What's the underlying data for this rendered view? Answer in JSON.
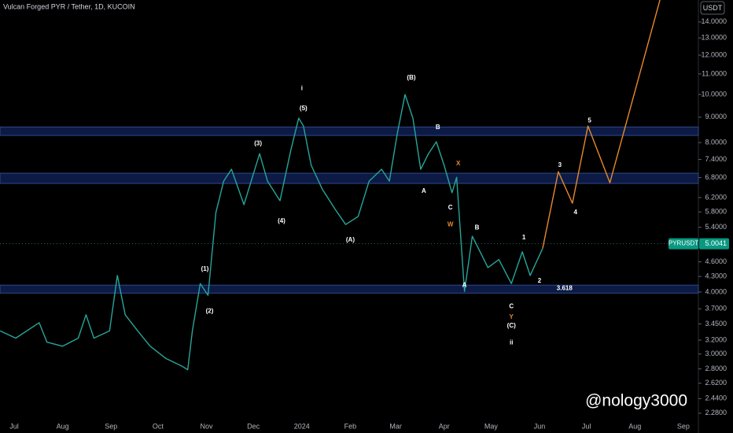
{
  "chart_data": {
    "type": "line",
    "title": "Vulcan Forged PYR / Tether, 1D, KUCOIN",
    "currency": "USDT",
    "symbol": "PYRUSDT",
    "last_price": {
      "value": 5.0041,
      "label": "5.0041"
    },
    "watermark": "@nology3000",
    "log_scale": true,
    "grid": false,
    "xlim": [
      -9.05,
      437.6
    ],
    "ylim": [
      2.08,
      15.5
    ],
    "xticks": [
      {
        "value": 0,
        "label": "Jul"
      },
      {
        "value": 31,
        "label": "Aug"
      },
      {
        "value": 62,
        "label": "Sep"
      },
      {
        "value": 92,
        "label": "Oct"
      },
      {
        "value": 123,
        "label": "Nov"
      },
      {
        "value": 153,
        "label": "Dec"
      },
      {
        "value": 184,
        "label": "2024"
      },
      {
        "value": 215,
        "label": "Feb"
      },
      {
        "value": 244,
        "label": "Mar"
      },
      {
        "value": 275,
        "label": "Apr"
      },
      {
        "value": 305,
        "label": "May"
      },
      {
        "value": 336,
        "label": "Jun"
      },
      {
        "value": 366,
        "label": "Jul"
      },
      {
        "value": 397,
        "label": "Aug"
      },
      {
        "value": 428,
        "label": "Sep"
      }
    ],
    "yticks": [
      {
        "value": 2.28,
        "label": "2.2800"
      },
      {
        "value": 2.44,
        "label": "2.4400"
      },
      {
        "value": 2.62,
        "label": "2.6200"
      },
      {
        "value": 2.8,
        "label": "2.8000"
      },
      {
        "value": 3.0,
        "label": "3.0000"
      },
      {
        "value": 3.2,
        "label": "3.2000"
      },
      {
        "value": 3.45,
        "label": "3.4500"
      },
      {
        "value": 3.7,
        "label": "3.7000"
      },
      {
        "value": 4.0,
        "label": "4.0000"
      },
      {
        "value": 4.3,
        "label": "4.3000"
      },
      {
        "value": 4.6,
        "label": "4.6000"
      },
      {
        "value": 5.4,
        "label": "5.4000"
      },
      {
        "value": 5.8,
        "label": "5.8000"
      },
      {
        "value": 6.2,
        "label": "6.2000"
      },
      {
        "value": 6.8,
        "label": "6.8000"
      },
      {
        "value": 7.4,
        "label": "7.4000"
      },
      {
        "value": 8.0,
        "label": "8.0000"
      },
      {
        "value": 9.0,
        "label": "9.0000"
      },
      {
        "value": 10.0,
        "label": "10.0000"
      },
      {
        "value": 11.0,
        "label": "11.0000"
      },
      {
        "value": 12.0,
        "label": "12.0000"
      },
      {
        "value": 13.0,
        "label": "13.0000"
      },
      {
        "value": 14.0,
        "label": "14.0000"
      }
    ],
    "series": [
      {
        "color": "#26a69a",
        "x": [
          -9,
          1,
          16,
          21,
          31,
          41,
          46,
          51,
          61,
          66,
          71,
          79,
          87,
          97,
          107,
          111,
          114,
          119,
          124,
          129,
          134,
          139,
          147,
          157,
          162,
          170,
          177,
          182,
          185,
          190,
          197,
          205,
          212,
          220,
          227,
          235,
          240,
          245,
          250,
          255,
          260,
          265,
          270,
          275,
          280,
          283,
          288,
          293,
          298,
          303,
          310,
          318,
          325,
          330,
          338
        ],
        "values": [
          3.34,
          3.23,
          3.47,
          3.17,
          3.11,
          3.23,
          3.6,
          3.23,
          3.34,
          4.32,
          3.6,
          3.34,
          3.11,
          2.94,
          2.84,
          2.79,
          3.34,
          4.16,
          3.94,
          5.78,
          6.69,
          7.07,
          6.0,
          7.6,
          6.69,
          6.11,
          7.74,
          8.96,
          8.64,
          7.2,
          6.45,
          5.89,
          5.47,
          5.68,
          6.69,
          7.07,
          6.69,
          8.33,
          10.0,
          8.96,
          7.07,
          7.6,
          8.03,
          7.2,
          6.34,
          6.81,
          4.01,
          5.18,
          4.82,
          4.48,
          4.65,
          4.16,
          4.82,
          4.32,
          4.9
        ]
      },
      {
        "color": "#e8892b",
        "x": [
          338,
          348,
          357,
          367,
          381,
          413
        ],
        "values": [
          4.9,
          6.99,
          6.04,
          8.64,
          6.64,
          15.5
        ]
      }
    ],
    "zones": [
      [
        8.27,
        8.6
      ],
      [
        6.62,
        6.94
      ],
      [
        3.98,
        4.13
      ]
    ],
    "annotations": [
      {
        "text": "i",
        "x": 184,
        "y": 10.29,
        "color": "#ffffff"
      },
      {
        "text": "(5)",
        "x": 185,
        "y": 9.36,
        "color": "#ffffff"
      },
      {
        "text": "(3)",
        "x": 156,
        "y": 7.97,
        "color": "#ffffff"
      },
      {
        "text": "(4)",
        "x": 171,
        "y": 5.56,
        "color": "#ffffff"
      },
      {
        "text": "(A)",
        "x": 215,
        "y": 5.09,
        "color": "#ffffff"
      },
      {
        "text": "(B)",
        "x": 254,
        "y": 10.8,
        "color": "#ffffff"
      },
      {
        "text": "B",
        "x": 271,
        "y": 8.58,
        "color": "#ffffff"
      },
      {
        "text": "A",
        "x": 262,
        "y": 6.38,
        "color": "#ffffff"
      },
      {
        "text": "C",
        "x": 279,
        "y": 5.91,
        "color": "#ffffff"
      },
      {
        "text": "X",
        "x": 284,
        "y": 7.25,
        "color": "#e8892b"
      },
      {
        "text": "W",
        "x": 279,
        "y": 5.47,
        "color": "#e8892b"
      },
      {
        "text": "B",
        "x": 296,
        "y": 5.39,
        "color": "#ffffff"
      },
      {
        "text": "A",
        "x": 288,
        "y": 4.13,
        "color": "#ffffff"
      },
      {
        "text": "1",
        "x": 326,
        "y": 5.15,
        "color": "#ffffff"
      },
      {
        "text": "2",
        "x": 336,
        "y": 4.21,
        "color": "#ffffff"
      },
      {
        "text": "3.618",
        "x": 352,
        "y": 4.07,
        "color": "#ffffff"
      },
      {
        "text": "C",
        "x": 318,
        "y": 3.74,
        "color": "#ffffff"
      },
      {
        "text": "Y",
        "x": 318,
        "y": 3.56,
        "color": "#e8892b"
      },
      {
        "text": "(C)",
        "x": 318,
        "y": 3.42,
        "color": "#ffffff"
      },
      {
        "text": "ii",
        "x": 318,
        "y": 3.16,
        "color": "#ffffff"
      },
      {
        "text": "(1)",
        "x": 122,
        "y": 4.45,
        "color": "#ffffff"
      },
      {
        "text": "(2)",
        "x": 125,
        "y": 3.66,
        "color": "#ffffff"
      },
      {
        "text": "3",
        "x": 349,
        "y": 7.2,
        "color": "#ffffff"
      },
      {
        "text": "4",
        "x": 359,
        "y": 5.78,
        "color": "#ffffff"
      },
      {
        "text": "5",
        "x": 368,
        "y": 8.86,
        "color": "#ffffff"
      }
    ]
  }
}
